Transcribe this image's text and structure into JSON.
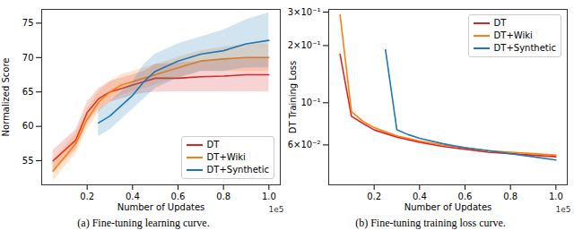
{
  "chart_data": [
    {
      "type": "line",
      "caption": "(a) Fine-tuning learning curve.",
      "x_label": "Number of Updates",
      "y_label": "Normalized Score",
      "annotations": [
        "1e5"
      ],
      "xlim": [
        0,
        1.05
      ],
      "xticks": [
        0.2,
        0.4,
        0.6,
        0.8,
        {
          "value": 1.0,
          "label": "1.0"
        }
      ],
      "ylim": [
        51.5,
        77
      ],
      "yticks": [
        55,
        60,
        65,
        70,
        75
      ],
      "grid": false,
      "legend": "lower right",
      "series": [
        {
          "name": "DT",
          "color": "#d62728",
          "x": [
            0.05,
            0.1,
            0.15,
            0.2,
            0.25,
            0.3,
            0.35,
            0.4,
            0.45,
            0.5,
            0.6,
            0.7,
            0.8,
            0.9,
            1.0
          ],
          "values": [
            55,
            56.5,
            58,
            62,
            64,
            65,
            65.5,
            66,
            66.5,
            67,
            67,
            67.2,
            67.3,
            67.5,
            67.5
          ],
          "lower": [
            53.5,
            55,
            56.5,
            60.5,
            62.5,
            63.5,
            64,
            64.5,
            64.8,
            65,
            65,
            65,
            65,
            65,
            65
          ],
          "upper": [
            56.5,
            58,
            59.5,
            63.5,
            65.5,
            66.5,
            67,
            67.5,
            68,
            69,
            69.2,
            69.5,
            69.7,
            70,
            70
          ]
        },
        {
          "name": "DT+Wiki",
          "color": "#ff7f0e",
          "x": [
            0.05,
            0.1,
            0.15,
            0.2,
            0.25,
            0.3,
            0.35,
            0.4,
            0.45,
            0.5,
            0.6,
            0.7,
            0.8,
            0.9,
            1.0
          ],
          "values": [
            53.5,
            55.5,
            57.5,
            61,
            63.5,
            65,
            66,
            66.5,
            67,
            67.5,
            68.5,
            69.5,
            69.8,
            70,
            70
          ],
          "lower": [
            52,
            54,
            56,
            59.5,
            62,
            63.5,
            64.5,
            65,
            65.5,
            66,
            67,
            68,
            68,
            68,
            68
          ],
          "upper": [
            55,
            57,
            59,
            62.5,
            65,
            66.5,
            67.5,
            68,
            68.5,
            69,
            70,
            71,
            71.5,
            72,
            72
          ]
        },
        {
          "name": "DT+Synthetic",
          "color": "#1f77b4",
          "x": [
            0.25,
            0.3,
            0.35,
            0.4,
            0.45,
            0.5,
            0.6,
            0.7,
            0.8,
            0.9,
            1.0
          ],
          "values": [
            60.5,
            61.5,
            63,
            64.5,
            66.5,
            68,
            69.5,
            70.5,
            71,
            72,
            72.5
          ],
          "lower": [
            58.5,
            59.5,
            61,
            62.5,
            64,
            65.5,
            67,
            68,
            68,
            68.5,
            68.5
          ],
          "upper": [
            62.5,
            63.5,
            65,
            66.5,
            69,
            70.5,
            72,
            73,
            74,
            75.5,
            76.5
          ]
        }
      ]
    },
    {
      "type": "line",
      "caption": "(b) Fine-tuning training loss curve.",
      "x_label": "Number of Updates",
      "y_label": "DT Training Loss",
      "annotations": [
        "1e5"
      ],
      "log": "y",
      "xlim": [
        0,
        1.05
      ],
      "xticks": [
        0.2,
        0.4,
        0.6,
        0.8,
        {
          "value": 1.0,
          "label": "1.0"
        }
      ],
      "ylim": [
        0.037,
        0.31
      ],
      "yticks": [
        {
          "value": 0.06,
          "label": "6×10⁻²"
        },
        {
          "value": 0.1,
          "label": "10⁻¹"
        },
        {
          "value": 0.2,
          "label": "2×10⁻¹"
        },
        {
          "value": 0.3,
          "label": "3×10⁻¹"
        }
      ],
      "grid": false,
      "legend": "upper right",
      "series": [
        {
          "name": "DT",
          "color": "#d62728",
          "x": [
            0.05,
            0.1,
            0.15,
            0.2,
            0.3,
            0.4,
            0.5,
            0.6,
            0.7,
            0.8,
            0.9,
            1.0
          ],
          "values": [
            0.18,
            0.085,
            0.078,
            0.072,
            0.066,
            0.062,
            0.059,
            0.057,
            0.055,
            0.054,
            0.053,
            0.052
          ]
        },
        {
          "name": "DT+Wiki",
          "color": "#ff7f0e",
          "x": [
            0.05,
            0.1,
            0.15,
            0.2,
            0.3,
            0.4,
            0.5,
            0.6,
            0.7,
            0.8,
            0.9,
            1.0
          ],
          "values": [
            0.29,
            0.09,
            0.08,
            0.074,
            0.067,
            0.063,
            0.06,
            0.058,
            0.056,
            0.055,
            0.054,
            0.053
          ]
        },
        {
          "name": "DT+Synthetic",
          "color": "#1f77b4",
          "x": [
            0.25,
            0.3,
            0.35,
            0.4,
            0.5,
            0.6,
            0.7,
            0.8,
            0.9,
            1.0
          ],
          "values": [
            0.19,
            0.072,
            0.068,
            0.065,
            0.061,
            0.058,
            0.056,
            0.054,
            0.052,
            0.05
          ]
        }
      ]
    }
  ]
}
